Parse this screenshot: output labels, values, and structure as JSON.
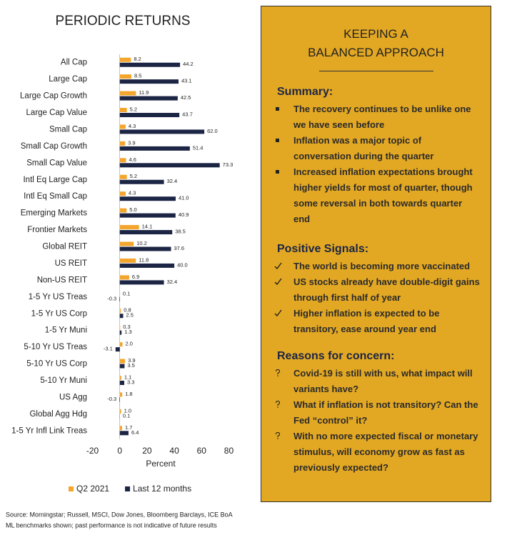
{
  "chart_data": {
    "type": "bar",
    "orientation": "horizontal",
    "title": "PERIODIC RETURNS",
    "x_label": "Percent",
    "categories": [
      "All Cap",
      "Large Cap",
      "Large Cap Growth",
      "Large Cap Value",
      "Small Cap",
      "Small Cap Growth",
      "Small Cap Value",
      "Intl Eq Large Cap",
      "Intl Eq Small Cap",
      "Emerging Markets",
      "Frontier Markets",
      "Global REIT",
      "US REIT",
      "Non-US REIT",
      "1-5 Yr US Treas",
      "1-5 Yr US Corp",
      "1-5 Yr Muni",
      "5-10 Yr US Treas",
      "5-10 Yr US Corp",
      "5-10 Yr Muni",
      "US Agg",
      "Global Agg Hdg",
      "1-5 Yr Infl Link Treas"
    ],
    "series": [
      {
        "name": "Q2 2021",
        "color": "#f4a52b",
        "values": [
          8.2,
          8.5,
          11.9,
          5.2,
          4.3,
          3.9,
          4.6,
          5.2,
          4.3,
          5.0,
          14.1,
          10.2,
          11.8,
          6.9,
          0.1,
          0.8,
          0.3,
          2.0,
          3.9,
          1.1,
          1.8,
          1.0,
          1.7
        ],
        "value_labels": [
          "8.2",
          "8.5",
          "11.9",
          "5.2",
          "4.3",
          "3.9",
          "4.6",
          "5.2",
          "4.3",
          "5.0",
          "14.1",
          "10.2",
          "11.8",
          "6.9",
          "0.1",
          "0.8",
          "0.3",
          "2.0",
          "3.9",
          "1.1",
          "1.8",
          "1.0",
          "1.7"
        ]
      },
      {
        "name": "Last 12 months",
        "color": "#1c2544",
        "values": [
          44.2,
          43.1,
          42.5,
          43.7,
          62.0,
          51.4,
          73.3,
          32.4,
          41.0,
          40.9,
          38.5,
          37.6,
          40.0,
          32.4,
          -0.3,
          2.5,
          1.3,
          -3.1,
          3.5,
          3.3,
          -0.3,
          0.1,
          6.4
        ],
        "value_labels": [
          "44.2",
          "43.1",
          "42.5",
          "43.7",
          "62.0",
          "51.4",
          "73.3",
          "32.4",
          "41.0",
          "40.9",
          "38.5",
          "37.6",
          "40.0",
          "32.4",
          "-0.3",
          "2.5",
          "1.3",
          "-3.1",
          "3.5",
          "3.3",
          "-0.3",
          "0.1",
          "6.4"
        ]
      }
    ],
    "xlim": [
      -25,
      85
    ],
    "xticks": [
      -20,
      0,
      20,
      40,
      60,
      80
    ],
    "grid": false,
    "legend": "bottom"
  },
  "source": [
    "Source: Morningstar; Russell, MSCI, Dow Jones, Bloomberg Barclays, ICE BoA",
    "ML benchmarks shown; past performance is not indicative of future results"
  ],
  "panel": {
    "title": [
      "KEEPING A",
      "BALANCED APPROACH"
    ],
    "sections": [
      {
        "heading": "Summary:",
        "items": [
          "The recovery continues to be unlike one we have seen before",
          "Inflation was a major topic of conversation during the quarter",
          "Increased inflation expectations brought higher yields for most of quarter, though some reversal in both towards quarter end"
        ]
      },
      {
        "heading": "Positive Signals:",
        "items": [
          "The world is becoming more vaccinated",
          "US stocks already have double-digit gains through first half of year",
          "Higher inflation is expected to be transitory, ease around year end"
        ]
      },
      {
        "heading": "Reasons for concern:",
        "items": [
          "Covid-19 is still with us, what impact will variants have?",
          "What if inflation is not transitory?  Can the Fed “control” it?",
          "With no more expected fiscal or monetary stimulus, will economy grow as fast as previously expected?"
        ]
      }
    ]
  }
}
